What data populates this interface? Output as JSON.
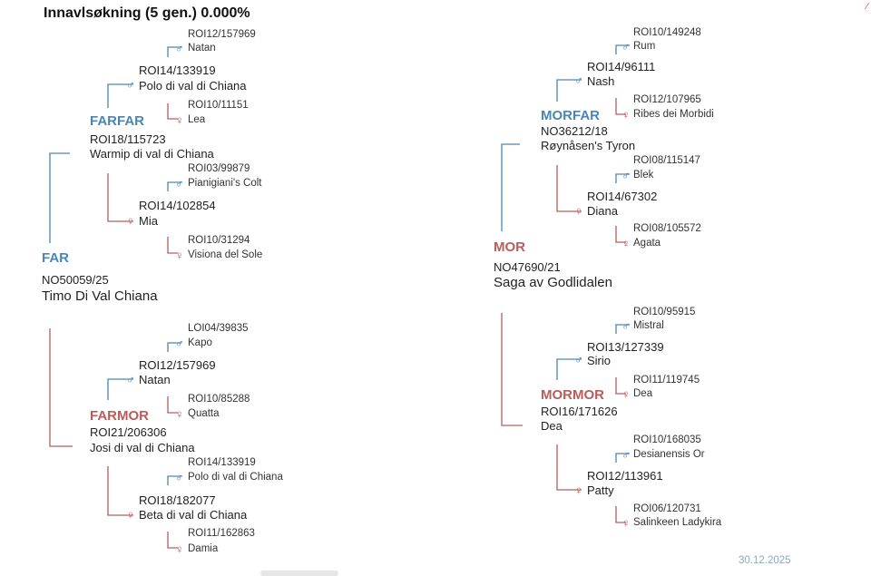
{
  "title": "Innavlsøkning (5 gen.) 0.000%",
  "date": "30.12.2025",
  "colors": {
    "male": "#4a86b5",
    "female": "#b85d5a",
    "date": "#8aa9c4"
  },
  "icons": {
    "male": "male-sign-icon",
    "female": "female-sign-icon"
  },
  "far": {
    "role": "FAR",
    "reg": "NO50059/25",
    "name": "Timo Di Val Chiana"
  },
  "farfar": {
    "role": "FARFAR",
    "reg": "ROI18/115723",
    "name": "Warmip di val di Chiana"
  },
  "farfar_s": {
    "reg": "ROI14/133919",
    "name": "Polo di val di Chiana"
  },
  "farfar_s_s": {
    "reg": "ROI12/157969",
    "name": "Natan"
  },
  "farfar_s_d": {
    "reg": "ROI10/11151",
    "name": "Lea"
  },
  "farfar_d": {
    "reg": "ROI14/102854",
    "name": "Mia"
  },
  "farfar_d_s": {
    "reg": "ROI03/99879",
    "name": "Pianigiani's Colt"
  },
  "farfar_d_d": {
    "reg": "ROI10/31294",
    "name": "Visiona del Sole"
  },
  "farmor": {
    "role": "FARMOR",
    "reg": "ROI21/206306",
    "name": "Josi di val di Chiana"
  },
  "farmor_s": {
    "reg": "ROI12/157969",
    "name": "Natan"
  },
  "farmor_s_s": {
    "reg": "LOI04/39835",
    "name": "Kapo"
  },
  "farmor_s_d": {
    "reg": "ROI10/85288",
    "name": "Quatta"
  },
  "farmor_d": {
    "reg": "ROI18/182077",
    "name": "Beta di val di Chiana"
  },
  "farmor_d_s": {
    "reg": "ROI14/133919",
    "name": "Polo di val di Chiana"
  },
  "farmor_d_d": {
    "reg": "ROI11/162863",
    "name": "Damia"
  },
  "mor": {
    "role": "MOR",
    "reg": "NO47690/21",
    "name": "Saga av Godlidalen"
  },
  "morfar": {
    "role": "MORFAR",
    "reg": "NO36212/18",
    "name": "Røynåsen's Tyron"
  },
  "morfar_s": {
    "reg": "ROI14/96111",
    "name": "Nash"
  },
  "morfar_s_s": {
    "reg": "ROI10/149248",
    "name": "Rum"
  },
  "morfar_s_d": {
    "reg": "ROI12/107965",
    "name": "Ribes dei Morbidi"
  },
  "morfar_d": {
    "reg": "ROI14/67302",
    "name": "Diana"
  },
  "morfar_d_s": {
    "reg": "ROI08/115147",
    "name": "Blek"
  },
  "morfar_d_d": {
    "reg": "ROI08/105572",
    "name": "Agata"
  },
  "mormor": {
    "role": "MORMOR",
    "reg": "ROI16/171626",
    "name": "Dea"
  },
  "mormor_s": {
    "reg": "ROI13/127339",
    "name": "Sirio"
  },
  "mormor_s_s": {
    "reg": "ROI10/95915",
    "name": "Mistral"
  },
  "mormor_s_d": {
    "reg": "ROI11/119745",
    "name": "Dea"
  },
  "mormor_d": {
    "reg": "ROI12/113961",
    "name": "Patty"
  },
  "mormor_d_s": {
    "reg": "ROI10/168035",
    "name": "Desianensis Or"
  },
  "mormor_d_d": {
    "reg": "ROI06/120731",
    "name": "Salinkeen Ladykira"
  }
}
